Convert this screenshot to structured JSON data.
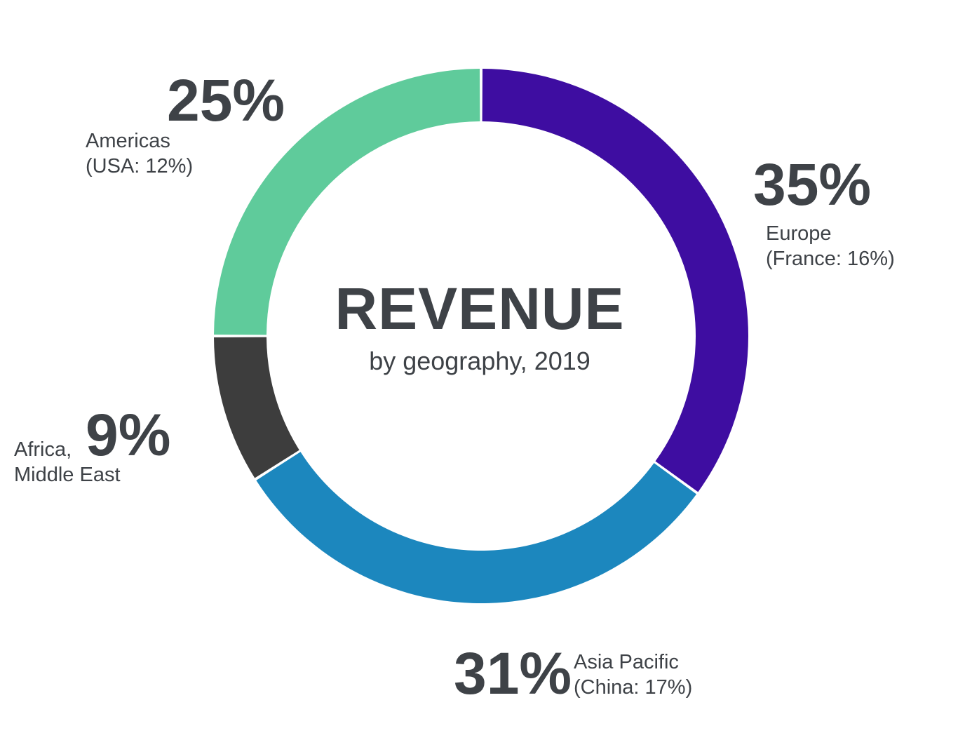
{
  "style": {
    "background": "#FFFFFF",
    "text_color": "#3E4247"
  },
  "chart_data": {
    "type": "pie",
    "variant": "donut",
    "title": "REVENUE",
    "subtitle": "by geography, 2019",
    "start_angle_deg": 0,
    "direction": "clockwise",
    "legend_position": "around-chart",
    "categories": [
      "Europe",
      "Asia Pacific",
      "Africa, Middle East",
      "Americas"
    ],
    "values": [
      35,
      31,
      9,
      25
    ],
    "segments": [
      {
        "label": "Europe",
        "value_pct": 35,
        "display": "35%",
        "detail": "(France: 16%)",
        "color": "#3E0DA1"
      },
      {
        "label": "Asia Pacific",
        "value_pct": 31,
        "display": "31%",
        "detail": "(China: 17%)",
        "color": "#1C87BE"
      },
      {
        "label": "Africa, Middle East",
        "value_pct": 9,
        "display": "9%",
        "detail": "",
        "color": "#3D3D3D"
      },
      {
        "label": "Americas",
        "value_pct": 25,
        "display": "25%",
        "detail": "(USA: 12%)",
        "color": "#5FCB9B"
      }
    ]
  },
  "annotations": {
    "americas": {
      "pct": "25%",
      "line1": "Americas",
      "line2": "(USA: 12%)"
    },
    "europe": {
      "pct": "35%",
      "line1": "Europe",
      "line2": "(France: 16%)"
    },
    "africa": {
      "pct": "9%",
      "line1": "Africa,",
      "line2": "Middle East"
    },
    "asia": {
      "pct": "31%",
      "line1": "Asia Pacific",
      "line2": "(China: 17%)"
    }
  }
}
